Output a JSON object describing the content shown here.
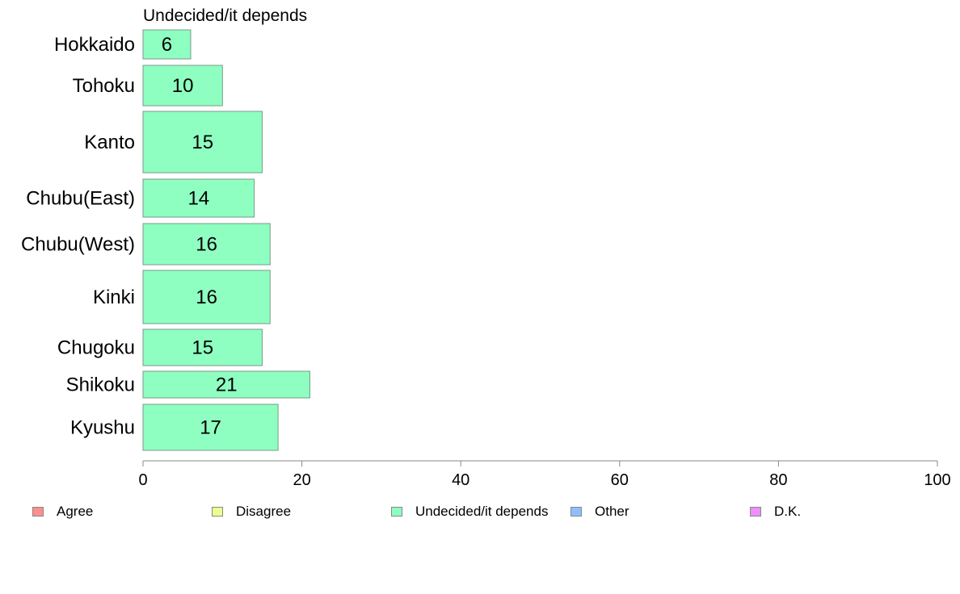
{
  "chart_data": {
    "type": "bar",
    "orientation": "horizontal",
    "title": "Undecided/it depends",
    "categories": [
      "Hokkaido",
      "Tohoku",
      "Kanto",
      "Chubu(East)",
      "Chubu(West)",
      "Kinki",
      "Chugoku",
      "Shikoku",
      "Kyushu"
    ],
    "series": [
      {
        "name": "Undecided/it depends",
        "values": [
          6,
          10,
          15,
          14,
          16,
          16,
          15,
          21,
          17
        ],
        "color": "#8effc1"
      }
    ],
    "xlim": [
      0,
      100
    ],
    "xticks": [
      "0",
      "20",
      "40",
      "60",
      "80",
      "100"
    ],
    "xlabel": "",
    "ylabel": "",
    "grid": false,
    "legend_placement": "bottom",
    "legend": [
      {
        "label": "Agree",
        "color": "#ff8e8e"
      },
      {
        "label": "Disagree",
        "color": "#efff8e"
      },
      {
        "label": "Undecided/it depends",
        "color": "#8effc1"
      },
      {
        "label": "Other",
        "color": "#8ebfff"
      },
      {
        "label": "D.K.",
        "color": "#ee8eff"
      }
    ]
  }
}
